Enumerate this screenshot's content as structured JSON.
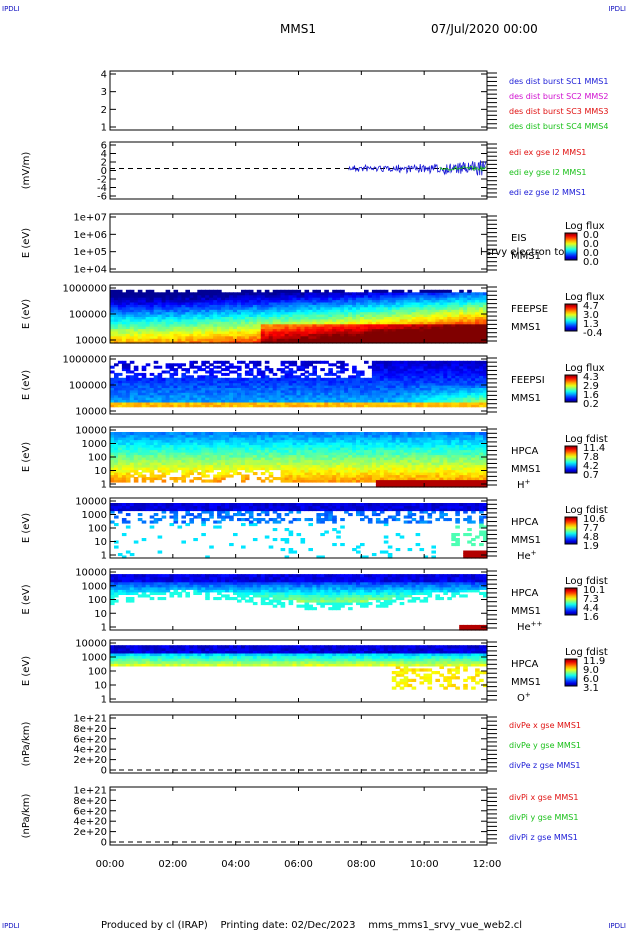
{
  "corner_label": "IPDLI",
  "header": {
    "title": "MMS1",
    "datetime": "07/Jul/2020 00:00"
  },
  "footer": {
    "text": "Produced by cl (IRAP)    Printing date: 02/Dec/2023    mms_mms1_srvy_vue_web2.cl"
  },
  "colors": {
    "blue": "#1a1ad6",
    "magenta": "#d010d0",
    "red": "#e01010",
    "green": "#18c018",
    "axis": "#000000"
  },
  "chart_data": [
    {
      "type": "line",
      "id": "distribution-availability",
      "ylabel": "",
      "yticks": [
        "4",
        "3",
        "2",
        "1"
      ],
      "legend": [
        {
          "label": "des dist burst SC1 MMS1",
          "color": "#1a1ad6"
        },
        {
          "label": "des dist burst SC2 MMS2",
          "color": "#d010d0"
        },
        {
          "label": "des dist burst SC3 MMS3",
          "color": "#e01010"
        },
        {
          "label": "des dist burst SC4 MMS4",
          "color": "#18c018"
        }
      ]
    },
    {
      "type": "line",
      "id": "edi-electric-field",
      "ylabel": "(mV/m)",
      "yticks": [
        "6",
        "4",
        "2",
        "0",
        "-2",
        "-4",
        "-6"
      ],
      "ylim": [
        -6,
        6
      ],
      "data_start_hour": 7.6,
      "legend": [
        {
          "label": "edi ex gse l2 MMS1",
          "color": "#e01010"
        },
        {
          "label": "edi ey gse l2 MMS1",
          "color": "#18c018"
        },
        {
          "label": "edi ez gse l2 MMS1",
          "color": "#1a1ad6"
        }
      ]
    },
    {
      "type": "heatmap",
      "id": "eis",
      "ylabel": "E (eV)",
      "yticks": [
        "1e+07",
        "1e+06",
        "1e+05",
        "1e+04"
      ],
      "side_labels": [
        "EIS",
        "MMS1"
      ],
      "overlay_note": "l srvy electron to",
      "colorbar": {
        "title": "Log flux",
        "ticks": [
          "0.0",
          "0.0",
          "0.0",
          "0.0"
        ]
      }
    },
    {
      "type": "heatmap",
      "id": "feeps-electrons",
      "ylabel": "E (eV)",
      "yticks": [
        "1000000",
        "100000",
        "10000"
      ],
      "side_labels": [
        "FEEPSE",
        "MMS1"
      ],
      "colorbar": {
        "title": "Log flux",
        "ticks": [
          "4.7",
          "3.0",
          "1.3",
          "-0.4"
        ]
      }
    },
    {
      "type": "heatmap",
      "id": "feeps-ions",
      "ylabel": "E (eV)",
      "yticks": [
        "1000000",
        "100000",
        "10000"
      ],
      "side_labels": [
        "FEEPSI",
        "MMS1"
      ],
      "colorbar": {
        "title": "Log flux",
        "ticks": [
          "4.3",
          "2.9",
          "1.6",
          "0.2"
        ]
      }
    },
    {
      "type": "heatmap",
      "id": "hpca-h",
      "ylabel": "E (eV)",
      "yticks": [
        "10000",
        "1000",
        "100",
        "10",
        "1"
      ],
      "side_labels": [
        "HPCA",
        "MMS1"
      ],
      "species": "H",
      "species_sup": "+",
      "colorbar": {
        "title": "Log fdist",
        "ticks": [
          "11.4",
          "7.8",
          "4.2",
          "0.7"
        ]
      }
    },
    {
      "type": "heatmap",
      "id": "hpca-he-plus",
      "ylabel": "E (eV)",
      "yticks": [
        "10000",
        "1000",
        "100",
        "10",
        "1"
      ],
      "side_labels": [
        "HPCA",
        "MMS1"
      ],
      "species": "He",
      "species_sup": "+",
      "colorbar": {
        "title": "Log fdist",
        "ticks": [
          "10.6",
          "7.7",
          "4.8",
          "1.9"
        ]
      }
    },
    {
      "type": "heatmap",
      "id": "hpca-he-plusplus",
      "ylabel": "E (eV)",
      "yticks": [
        "10000",
        "1000",
        "100",
        "10",
        "1"
      ],
      "side_labels": [
        "HPCA",
        "MMS1"
      ],
      "species": "He",
      "species_sup": "++",
      "colorbar": {
        "title": "Log fdist",
        "ticks": [
          "10.1",
          "7.3",
          "4.4",
          "1.6"
        ]
      }
    },
    {
      "type": "heatmap",
      "id": "hpca-o",
      "ylabel": "E (eV)",
      "yticks": [
        "10000",
        "1000",
        "100",
        "10",
        "1"
      ],
      "side_labels": [
        "HPCA",
        "MMS1"
      ],
      "species": "O",
      "species_sup": "+",
      "colorbar": {
        "title": "Log fdist",
        "ticks": [
          "11.9",
          "9.0",
          "6.0",
          "3.1"
        ]
      }
    },
    {
      "type": "line",
      "id": "divpe",
      "ylabel": "(nPa/km)",
      "yticks": [
        "1e+21",
        "8e+20",
        "6e+20",
        "4e+20",
        "2e+20",
        "0"
      ],
      "legend": [
        {
          "label": "divPe x gse MMS1",
          "color": "#e01010"
        },
        {
          "label": "divPe y gse MMS1",
          "color": "#18c018"
        },
        {
          "label": "divPe z gse MMS1",
          "color": "#1a1ad6"
        }
      ]
    },
    {
      "type": "line",
      "id": "divpi",
      "ylabel": "(nPa/km)",
      "yticks": [
        "1e+21",
        "8e+20",
        "6e+20",
        "4e+20",
        "2e+20",
        "0"
      ],
      "legend": [
        {
          "label": "divPi x gse MMS1",
          "color": "#e01010"
        },
        {
          "label": "divPi y gse MMS1",
          "color": "#18c018"
        },
        {
          "label": "divPi z gse MMS1",
          "color": "#1a1ad6"
        }
      ]
    }
  ],
  "xaxis": {
    "ticks": [
      "00:00",
      "02:00",
      "04:00",
      "06:00",
      "08:00",
      "10:00",
      "12:00"
    ],
    "range_hours": [
      0,
      12
    ]
  }
}
